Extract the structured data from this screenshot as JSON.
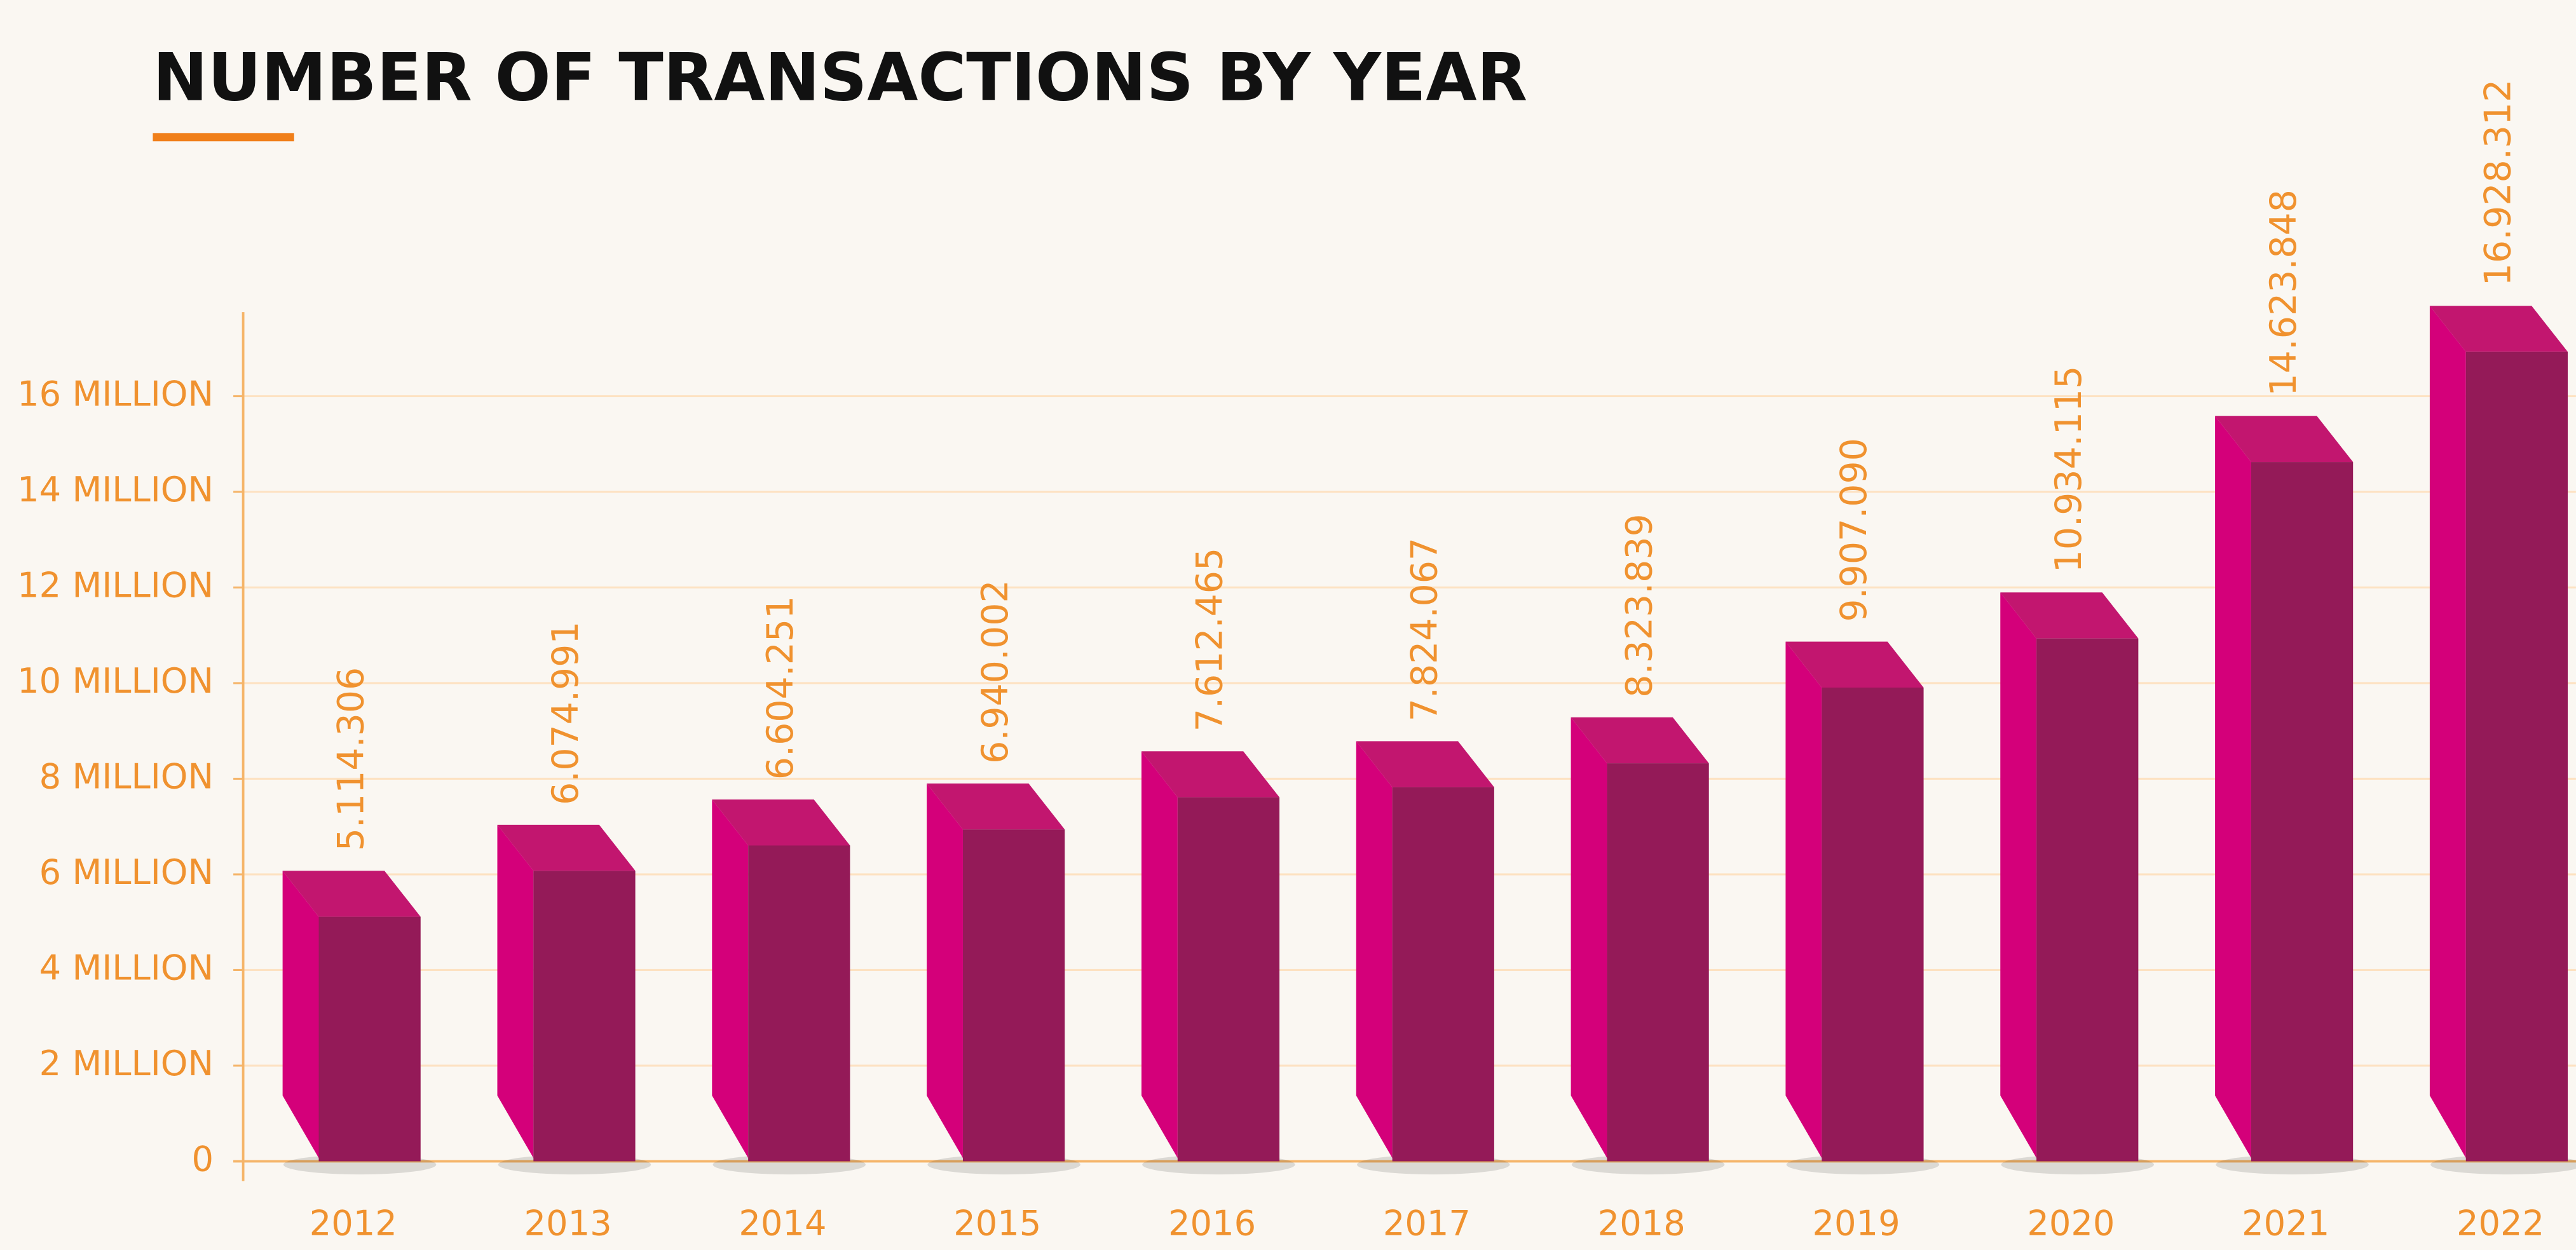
{
  "chart_data": {
    "type": "bar3d",
    "title": "NUMBER OF TRANSACTIONS BY YEAR",
    "categories": [
      "2012",
      "2013",
      "2014",
      "2015",
      "2016",
      "2017",
      "2018",
      "2019",
      "2020",
      "2021",
      "2022"
    ],
    "values": [
      5114306,
      6074991,
      6604251,
      6940002,
      7612465,
      7824067,
      8323839,
      9907090,
      10934115,
      14623848,
      16928312
    ],
    "value_labels": [
      "5.114.306",
      "6.074.991",
      "6.604.251",
      "6.940.002",
      "7.612.465",
      "7.824.067",
      "8.323.839",
      "9.907.090",
      "10.934.115",
      "14.623.848",
      "16.928.312"
    ],
    "colors": {
      "front": "#941a58",
      "side": "#d4007a",
      "top": "#c2166f"
    },
    "ylim": [
      0,
      18000000
    ],
    "yticks": [
      0,
      {
        "value": 2000000,
        "label": "2 MILLION"
      },
      {
        "value": 4000000,
        "label": "4 MILLION"
      },
      {
        "value": 6000000,
        "label": "6 MILLION"
      },
      {
        "value": 8000000,
        "label": "8 MILLION"
      },
      {
        "value": 10000000,
        "label": "10 MILLION"
      },
      {
        "value": 12000000,
        "label": "12 MILLION"
      },
      {
        "value": 14000000,
        "label": "14 MILLION"
      },
      {
        "value": 16000000,
        "label": "16 MILLION"
      }
    ],
    "grid": true
  }
}
